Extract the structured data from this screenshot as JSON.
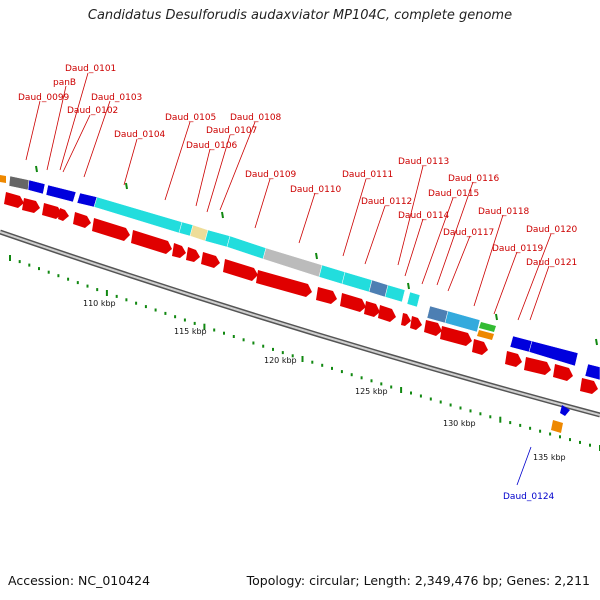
{
  "title": "Candidatus Desulforudis audaxviator MP104C, complete genome",
  "footer": {
    "accession": "Accession: NC_010424",
    "info": "Topology: circular; Length: 2,349,476 bp; Genes: 2,211"
  },
  "gene_labels": [
    "Daud_0101",
    "panB",
    "Daud_0099",
    "Daud_0103",
    "Daud_0102",
    "Daud_0104",
    "Daud_0105",
    "Daud_0108",
    "Daud_0107",
    "Daud_0106",
    "Daud_0109",
    "Daud_0110",
    "Daud_0111",
    "Daud_0113",
    "Daud_0112",
    "Daud_0116",
    "Daud_0115",
    "Daud_0114",
    "Daud_0118",
    "Daud_0117",
    "Daud_0120",
    "Daud_0119",
    "Daud_0121",
    "Daud_0124"
  ],
  "scale_labels": [
    "110 kbp",
    "115 kbp",
    "120 kbp",
    "125 kbp",
    "130 kbp",
    "135 kbp"
  ],
  "colors": {
    "cds_forward": "#e00000",
    "label_red": "#cc0000",
    "label_blue": "#0000cc",
    "backbone": "#888888",
    "tick": "#118811",
    "blue_gene": "#0000dd",
    "cyan_gene": "#22dddd",
    "steel_gene": "#4d7fb3",
    "sky_gene": "#33aadd",
    "gray_gene": "#bbbbbb",
    "khaki_gene": "#eedd99",
    "dark_gray_gene": "#666666",
    "orange_gene": "#ee8800",
    "green_gene": "#33bb33"
  }
}
